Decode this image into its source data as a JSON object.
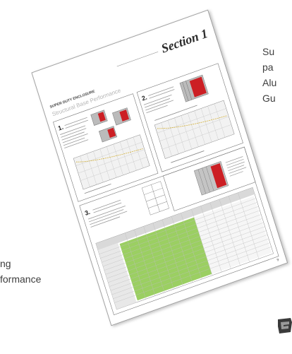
{
  "right_caption": [
    "Su",
    "pa",
    "Alu",
    "Gu"
  ],
  "left_caption": [
    "ng",
    "formance"
  ],
  "page": {
    "section_title": "Section 1",
    "header": "SUPER DUTY ENCLOSURE",
    "subtitle": "Structural Base Performance",
    "panel1_number": "1.",
    "panel2_number": "2.",
    "panel3_number": "3.",
    "page_number": "9"
  },
  "colors": {
    "accent": "#cc1f24",
    "highlight": "#9bcf62",
    "paper": "#ffffff",
    "line": "#7a7a7a"
  }
}
